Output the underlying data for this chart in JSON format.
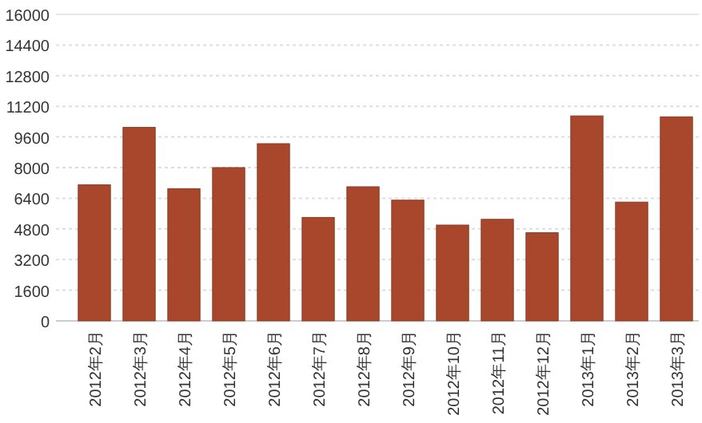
{
  "chart_data": {
    "type": "bar",
    "categories": [
      "2012年2月",
      "2012年3月",
      "2012年4月",
      "2012年5月",
      "2012年6月",
      "2012年7月",
      "2012年8月",
      "2012年9月",
      "2012年10月",
      "2012年11月",
      "2012年12月",
      "2013年1月",
      "2013年2月",
      "2013年3月"
    ],
    "values": [
      7100,
      10100,
      6900,
      8000,
      9250,
      5400,
      7000,
      6300,
      5000,
      5300,
      4600,
      10700,
      6200,
      10650
    ],
    "color": "#a8472b",
    "ylim": [
      0,
      16000
    ],
    "yticks": [
      0,
      1600,
      3200,
      4800,
      6400,
      8000,
      9600,
      11200,
      12800,
      14400,
      16000
    ],
    "grid": "y"
  }
}
